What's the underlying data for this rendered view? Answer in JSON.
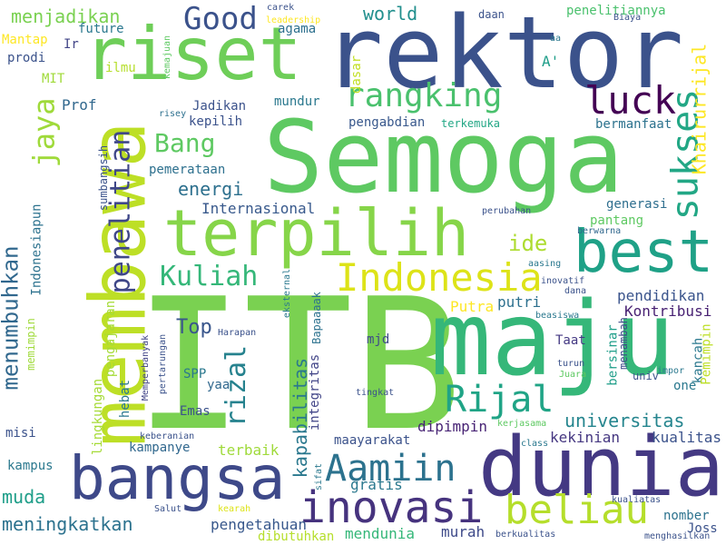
{
  "words": [
    {
      "text": "ITB",
      "color": "#7ad151"
    },
    {
      "text": "Semoga",
      "color": "#5ec962"
    },
    {
      "text": "rektor",
      "color": "#3b528b"
    },
    {
      "text": "maju",
      "color": "#35b779"
    },
    {
      "text": "membawa",
      "color": "#bddf26"
    },
    {
      "text": "dunia",
      "color": "#443983"
    },
    {
      "text": "riset",
      "color": "#6ece58"
    },
    {
      "text": "terpilih",
      "color": "#86d549"
    },
    {
      "text": "bangsa",
      "color": "#3e4989"
    },
    {
      "text": "best",
      "color": "#1fa187"
    },
    {
      "text": "inovasi",
      "color": "#46337e"
    },
    {
      "text": "Indonesia",
      "color": "#dde318"
    },
    {
      "text": "rangking",
      "color": "#4ac16d"
    },
    {
      "text": "beliau",
      "color": "#b5de2b"
    },
    {
      "text": "Aamiin",
      "color": "#2c728e"
    },
    {
      "text": "Rijal",
      "color": "#20a486"
    },
    {
      "text": "sukses",
      "color": "#22a785"
    },
    {
      "text": "luck",
      "color": "#440154"
    },
    {
      "text": "Good",
      "color": "#3b528b"
    },
    {
      "text": "penelitian",
      "color": "#3f4788"
    },
    {
      "text": "rizal",
      "color": "#26828e"
    },
    {
      "text": "Kuliah",
      "color": "#35b779"
    },
    {
      "text": "menumbuhkan",
      "color": "#31688e"
    },
    {
      "text": "jaya",
      "color": "#9fda3a"
    },
    {
      "text": "Bang",
      "color": "#5ec962"
    },
    {
      "text": "Khairurrijal",
      "color": "#fde725"
    },
    {
      "text": "universitas",
      "color": "#25858e"
    },
    {
      "text": "kapabilitas",
      "color": "#2a788e"
    },
    {
      "text": "meningkatkan",
      "color": "#2c728e"
    },
    {
      "text": "muda",
      "color": "#1f9e89"
    },
    {
      "text": "ide",
      "color": "#addc30"
    },
    {
      "text": "world",
      "color": "#218f8d"
    },
    {
      "text": "menjadikan",
      "color": "#7ad151"
    },
    {
      "text": "energi",
      "color": "#2d708e"
    },
    {
      "text": "Internasional",
      "color": "#38598c"
    },
    {
      "text": "Top",
      "color": "#39568c"
    },
    {
      "text": "kekinian",
      "color": "#453781"
    },
    {
      "text": "kualitas",
      "color": "#3b528b"
    },
    {
      "text": "pendidikan",
      "color": "#3a548c"
    },
    {
      "text": "Kontribusi",
      "color": "#482173"
    },
    {
      "text": "Putra",
      "color": "#fde725"
    },
    {
      "text": "putri",
      "color": "#2d708e"
    },
    {
      "text": "dipimpin",
      "color": "#482475"
    },
    {
      "text": "terbaik",
      "color": "#9fda3a"
    },
    {
      "text": "kampanye",
      "color": "#31688e"
    },
    {
      "text": "pengetahuan",
      "color": "#38588c"
    },
    {
      "text": "gratis",
      "color": "#2a788e"
    },
    {
      "text": "mendunia",
      "color": "#35b779"
    },
    {
      "text": "murah",
      "color": "#3e4a89"
    },
    {
      "text": "kampus",
      "color": "#2a788e"
    },
    {
      "text": "penelitiannya",
      "color": "#4ac16d"
    },
    {
      "text": "A'",
      "color": "#1f9e89"
    },
    {
      "text": "bermanfaat",
      "color": "#2c728e"
    },
    {
      "text": "pantang",
      "color": "#5ec962"
    },
    {
      "text": "generasi",
      "color": "#2e6e8e"
    },
    {
      "text": "pemerataan",
      "color": "#2d708e"
    },
    {
      "text": "kepilih",
      "color": "#3b528b"
    },
    {
      "text": "Jadikan",
      "color": "#3b528b"
    },
    {
      "text": "mundur",
      "color": "#2a788e"
    },
    {
      "text": "pengabdian",
      "color": "#38588c"
    },
    {
      "text": "terkemuka",
      "color": "#22a785"
    },
    {
      "text": "Prof",
      "color": "#31688e"
    },
    {
      "text": "future",
      "color": "#2a788e"
    },
    {
      "text": "Mantap",
      "color": "#fde725"
    },
    {
      "text": "Ir",
      "color": "#414487"
    },
    {
      "text": "prodi",
      "color": "#3b528b"
    },
    {
      "text": "ilmu",
      "color": "#b5de2b"
    },
    {
      "text": "MIT",
      "color": "#a0da39"
    },
    {
      "text": "agama",
      "color": "#2d708e"
    },
    {
      "text": "dasar",
      "color": "#c2df23"
    },
    {
      "text": "daan",
      "color": "#3b528b"
    },
    {
      "text": "SPP",
      "color": "#2a788e"
    },
    {
      "text": "yaa",
      "color": "#31688e"
    },
    {
      "text": "Emas",
      "color": "#3b528b"
    },
    {
      "text": "hebat",
      "color": "#2a788e"
    },
    {
      "text": "misi",
      "color": "#3b528b"
    },
    {
      "text": "mjd",
      "color": "#3e4a89"
    },
    {
      "text": "Taat",
      "color": "#443983"
    },
    {
      "text": "maayarakat",
      "color": "#3b528b"
    },
    {
      "text": "integritas",
      "color": "#414487"
    },
    {
      "text": "Bapaaaak",
      "color": "#2c728e"
    },
    {
      "text": "Indonesiapun",
      "color": "#2c728e"
    },
    {
      "text": "lingkungan",
      "color": "#a5db36"
    },
    {
      "text": "pengajaran",
      "color": "#a5db36"
    },
    {
      "text": "sumbangsih",
      "color": "#3b528b"
    },
    {
      "text": "memimpin",
      "color": "#9fda3a"
    },
    {
      "text": "bersinar",
      "color": "#1f9e89"
    },
    {
      "text": "menambah",
      "color": "#3e4a89"
    },
    {
      "text": "kancah",
      "color": "#2a788e"
    },
    {
      "text": "Pemimpin",
      "color": "#bddf26"
    },
    {
      "text": "one",
      "color": "#2a788e"
    },
    {
      "text": "nomber",
      "color": "#2c728e"
    },
    {
      "text": "Joss",
      "color": "#3b528b"
    },
    {
      "text": "dibutuhkan",
      "color": "#b5de2b"
    },
    {
      "text": "leadership",
      "color": "#fde725"
    },
    {
      "text": "carek",
      "color": "#3b528b"
    },
    {
      "text": "Biaya",
      "color": "#3b528b"
    },
    {
      "text": "aa",
      "color": "#2a788e"
    },
    {
      "text": "kemajuan",
      "color": "#5ec962"
    },
    {
      "text": "risey",
      "color": "#2d708e"
    },
    {
      "text": "perubahan",
      "color": "#3b528b"
    },
    {
      "text": "berwarna",
      "color": "#31688e"
    },
    {
      "text": "aasing",
      "color": "#2a788e"
    },
    {
      "text": "inovatif",
      "color": "#3b528b"
    },
    {
      "text": "dana",
      "color": "#3b528b"
    },
    {
      "text": "beasiswa",
      "color": "#2a788e"
    },
    {
      "text": "eksternal",
      "color": "#2a788e"
    },
    {
      "text": "Harapan",
      "color": "#3b528b"
    },
    {
      "text": "Memperbanyak",
      "color": "#414487"
    },
    {
      "text": "pertarungan",
      "color": "#3b528b"
    },
    {
      "text": "tingkat",
      "color": "#3b528b"
    },
    {
      "text": "keberanian",
      "color": "#3b528b"
    },
    {
      "text": "kerjasama",
      "color": "#5ec962"
    },
    {
      "text": "class",
      "color": "#2a788e"
    },
    {
      "text": "Salut",
      "color": "#3b528b"
    },
    {
      "text": "kearah",
      "color": "#dde318"
    },
    {
      "text": "sifat",
      "color": "#2a788e"
    },
    {
      "text": "kualiatas",
      "color": "#3b528b"
    },
    {
      "text": "berkualitas",
      "color": "#3b528b"
    },
    {
      "text": "menghasilkan",
      "color": "#3b528b"
    },
    {
      "text": "turun",
      "color": "#3b528b"
    },
    {
      "text": "Juara",
      "color": "#5ec962"
    },
    {
      "text": "impor",
      "color": "#2a788e"
    },
    {
      "text": "univ",
      "color": "#3b528b"
    }
  ]
}
